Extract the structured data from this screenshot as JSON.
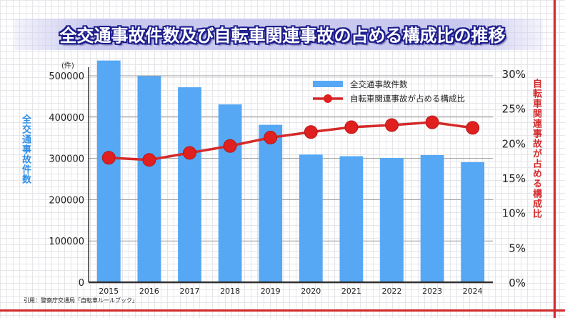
{
  "chart_data": {
    "type": "bar+line",
    "title": "全交通事故件数及び自転車関連事故の占める構成比の推移",
    "categories": [
      "2015",
      "2016",
      "2017",
      "2018",
      "2019",
      "2020",
      "2021",
      "2022",
      "2023",
      "2024"
    ],
    "series": [
      {
        "name": "全交通事故件数",
        "type": "bar",
        "axis": "left",
        "color": "#56a8f5",
        "values": [
          536899,
          499201,
          472165,
          430601,
          381237,
          309178,
          305196,
          300839,
          307930,
          290792
        ]
      },
      {
        "name": "自転車関連事故が占める構成比",
        "type": "line",
        "axis": "right",
        "color": "#d42a2a",
        "values": [
          17.9,
          17.6,
          18.6,
          19.6,
          20.8,
          21.6,
          22.3,
          22.6,
          23.0,
          22.2
        ]
      }
    ],
    "ylabel": "全交通事故件数",
    "y2label": "自転車関連事故が占める構成比",
    "yunit": "(件)",
    "ylim": [
      0,
      500000
    ],
    "y2lim": [
      0,
      30
    ],
    "yticks": [
      "0",
      "100000",
      "200000",
      "300000",
      "400000",
      "500000"
    ],
    "y2ticks": [
      "0%",
      "5%",
      "10%",
      "15%",
      "20%",
      "25%",
      "30%"
    ],
    "grid": true,
    "legend_position": "top-right"
  },
  "source": "引用：警察庁交通局「自転車ルールブック」",
  "colors": {
    "bar": "#56a8f5",
    "line": "#d42a2a",
    "title_outline": "#1d1d8c"
  }
}
